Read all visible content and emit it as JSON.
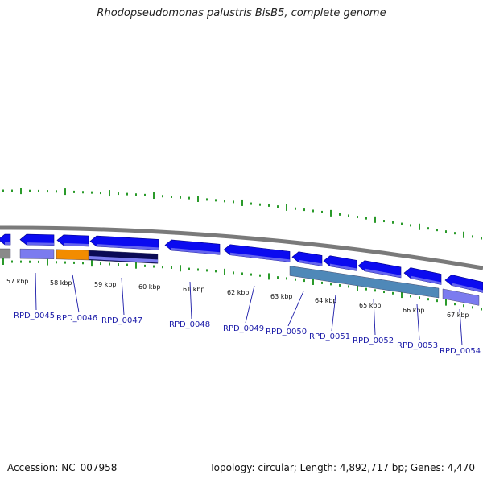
{
  "title": "Rhodopseudomonas palustris BisB5, complete genome",
  "accession": "Accession: NC_007958",
  "summary": "Topology: circular; Length: 4,892,717 bp; Genes: 4,470",
  "colors": {
    "backbone": "#7a7a7a",
    "cds": "#0b0bf0",
    "cds_light": "#7b7bef",
    "gray_feature": "#8a8a8a",
    "orange_feature": "#f28c00",
    "navy_feature": "#0a0a55",
    "steel_feature": "#4f88b8",
    "tick": "#2a9a2a",
    "label": "#1a1aa8"
  },
  "kbp_ticks": [
    "57 kbp",
    "58 kbp",
    "59 kbp",
    "60 kbp",
    "61 kbp",
    "62 kbp",
    "63 kbp",
    "64 kbp",
    "65 kbp",
    "66 kbp",
    "67 kbp"
  ],
  "genes": [
    "RPD_0045",
    "RPD_0046",
    "RPD_0047",
    "RPD_0048",
    "RPD_0049",
    "RPD_0050",
    "RPD_0051",
    "RPD_0052",
    "RPD_0053",
    "RPD_0054"
  ]
}
